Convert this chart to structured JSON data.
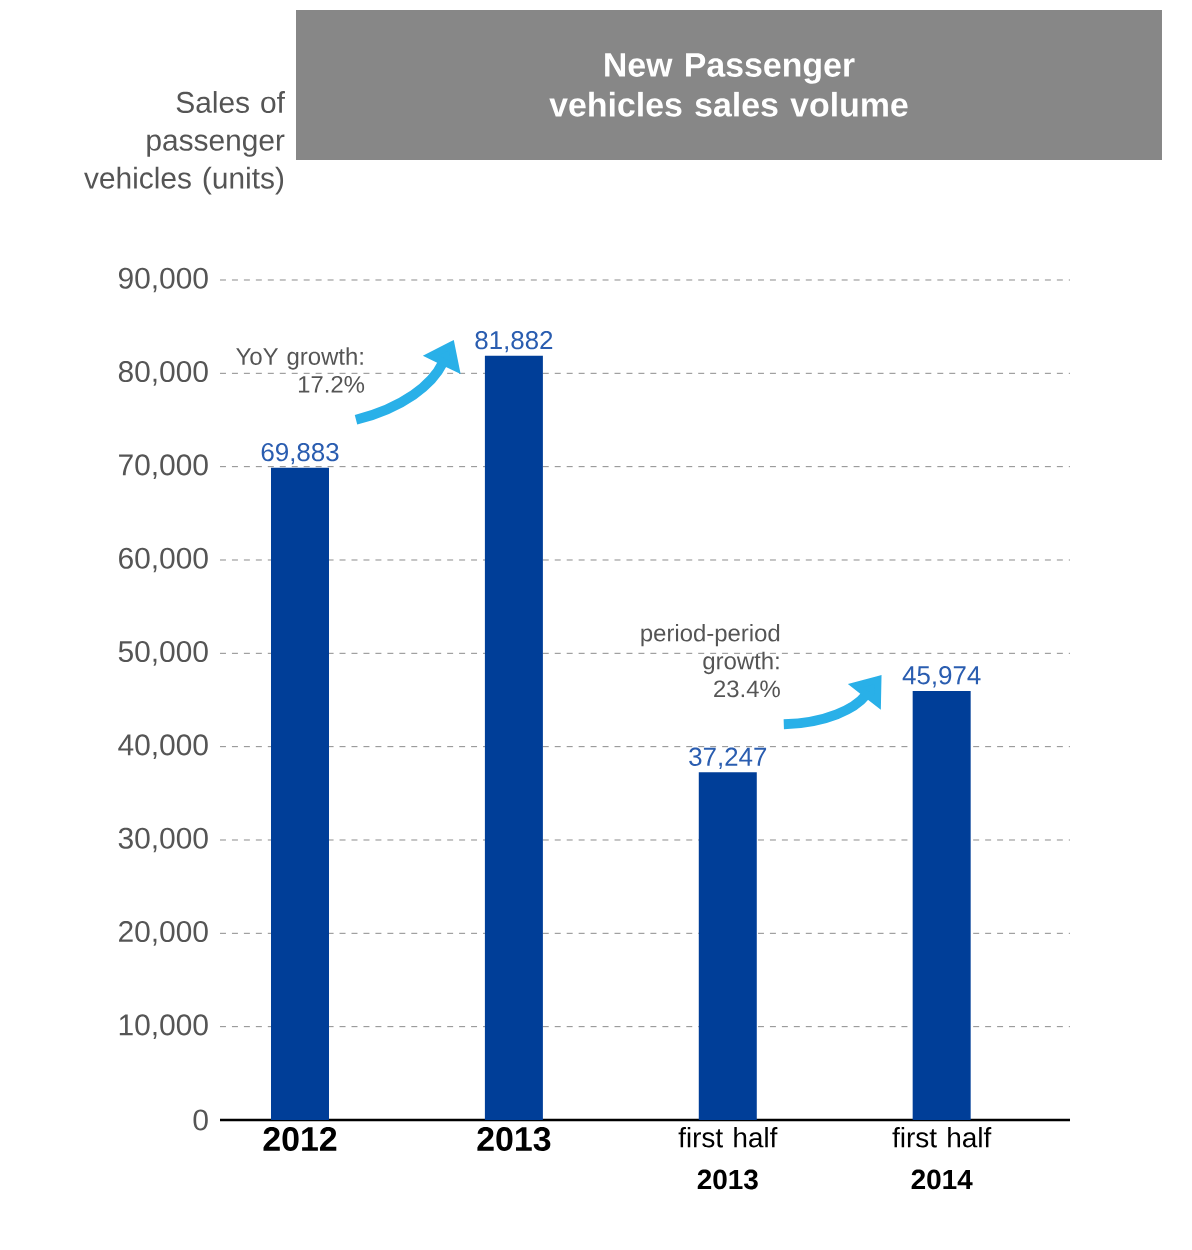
{
  "chart_data": {
    "type": "bar",
    "title": "New Passenger vehicles sales volume",
    "ylabel": "Sales of passenger vehicles (units)",
    "categories": [
      "2012",
      "2013",
      "first half **2013**",
      "first half **2014**"
    ],
    "values": [
      69883,
      81882,
      37247,
      45974
    ],
    "color": "#003e98",
    "value_labels": [
      "69,883",
      "81,882",
      "37,247",
      "45,974"
    ],
    "ylim": [
      0,
      90000
    ],
    "yticks": [
      0,
      {
        "value": 10000,
        "label": "10,000"
      },
      {
        "value": 20000,
        "label": "20,000"
      },
      {
        "value": 30000,
        "label": "30,000"
      },
      {
        "value": 40000,
        "label": "40,000"
      },
      {
        "value": 50000,
        "label": "50,000"
      },
      {
        "value": 60000,
        "label": "60,000"
      },
      {
        "value": 70000,
        "label": "70,000"
      },
      {
        "value": 80000,
        "label": "80,000"
      },
      {
        "value": 90000,
        "label": "90,000"
      }
    ],
    "grid": "y",
    "annotations": [
      "YoY growth: 17.2%",
      "period-period growth: 23.4%"
    ]
  }
}
